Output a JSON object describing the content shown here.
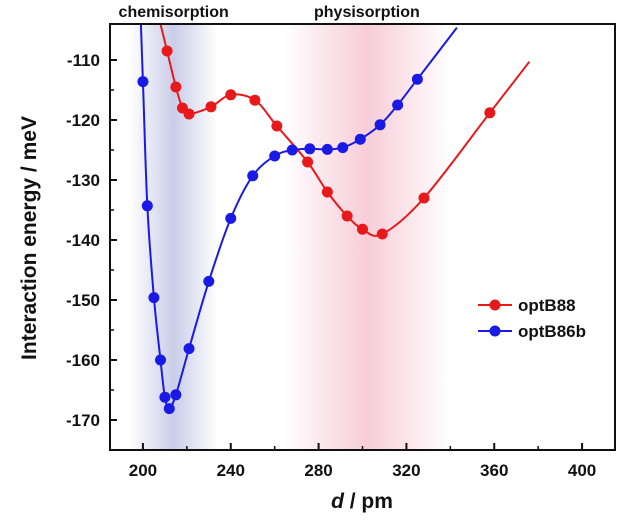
{
  "chart_data": {
    "type": "line",
    "title": "",
    "xlabel_italic": "d",
    "xlabel_rest": " / pm",
    "ylabel": "Interaction energy / meV",
    "xlim": [
      185,
      415
    ],
    "ylim": [
      -175,
      -104
    ],
    "x_ticks": [
      200,
      240,
      280,
      320,
      360,
      400
    ],
    "y_ticks": [
      -110,
      -120,
      -130,
      -140,
      -150,
      -160,
      -170
    ],
    "regions": [
      {
        "label": "chemisorption",
        "x_center": 214,
        "half_width": 20,
        "color": "#c9cde8"
      },
      {
        "label": "physisorption",
        "x_center": 302,
        "half_width": 38,
        "color": "#f7cdd8"
      }
    ],
    "legend_position": "right-middle",
    "series": [
      {
        "name": "optB88",
        "color": "#e8191b",
        "x": [
          211,
          215,
          218,
          221,
          231,
          240,
          251,
          261,
          275,
          284,
          293,
          300,
          309,
          328,
          358
        ],
        "y": [
          -108.5,
          -114.5,
          -118,
          -119,
          -117.8,
          -115.8,
          -116.7,
          -121,
          -127,
          -132,
          -136,
          -138.2,
          -139,
          -133,
          -118.8
        ]
      },
      {
        "name": "optB86b",
        "color": "#1a1ae6",
        "x": [
          200,
          202,
          205,
          208,
          210,
          212,
          215,
          221,
          230,
          240,
          250,
          260,
          268,
          276,
          284,
          291,
          299,
          308,
          316,
          325
        ],
        "y": [
          -113.6,
          -134.3,
          -149.6,
          -160,
          -166.2,
          -168.1,
          -165.8,
          -158.1,
          -146.9,
          -136.4,
          -129.3,
          -126,
          -125,
          -124.8,
          -124.9,
          -124.6,
          -123.2,
          -120.8,
          -117.5,
          -113.2
        ]
      }
    ]
  }
}
